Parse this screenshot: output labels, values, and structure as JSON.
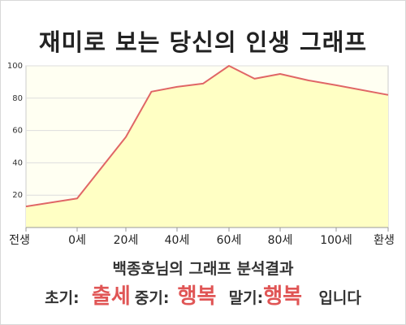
{
  "header": {
    "title": "재미로 보는 당신의 인생 그래프"
  },
  "chart_data": {
    "type": "area",
    "title": "재미로 보는 당신의 인생 그래프",
    "xlabel": "",
    "ylabel": "",
    "x_tick_labels": [
      "전생",
      "0세",
      "20세",
      "40세",
      "60세",
      "80세",
      "100세",
      "환생"
    ],
    "y_ticks": [
      20,
      40,
      60,
      80,
      100
    ],
    "ylim": [
      0,
      100
    ],
    "grid": true,
    "series": [
      {
        "points": [
          {
            "t": 0,
            "value": 13
          },
          {
            "t": 1,
            "value": 18
          },
          {
            "t": 2,
            "value": 56
          },
          {
            "t": 2.5,
            "value": 84
          },
          {
            "t": 3,
            "value": 87
          },
          {
            "t": 3.5,
            "value": 89
          },
          {
            "t": 4,
            "value": 100
          },
          {
            "t": 4.5,
            "value": 92
          },
          {
            "t": 5,
            "value": 95
          },
          {
            "t": 5.5,
            "value": 91
          },
          {
            "t": 6,
            "value": 88
          },
          {
            "t": 7,
            "value": 82
          }
        ]
      }
    ],
    "colors": {
      "line": "#e06666",
      "fill": "#ffffc4",
      "grid": "#dddddd",
      "plot_bg": "#fffff2"
    }
  },
  "summary": {
    "subtitle": "백종호님의 그래프 분석결과",
    "early_label": "초기:",
    "early_value": "출세",
    "mid_label": "중기:",
    "mid_value": "행복",
    "late_label": "말기:",
    "late_value": "행복",
    "ending": "입니다"
  }
}
